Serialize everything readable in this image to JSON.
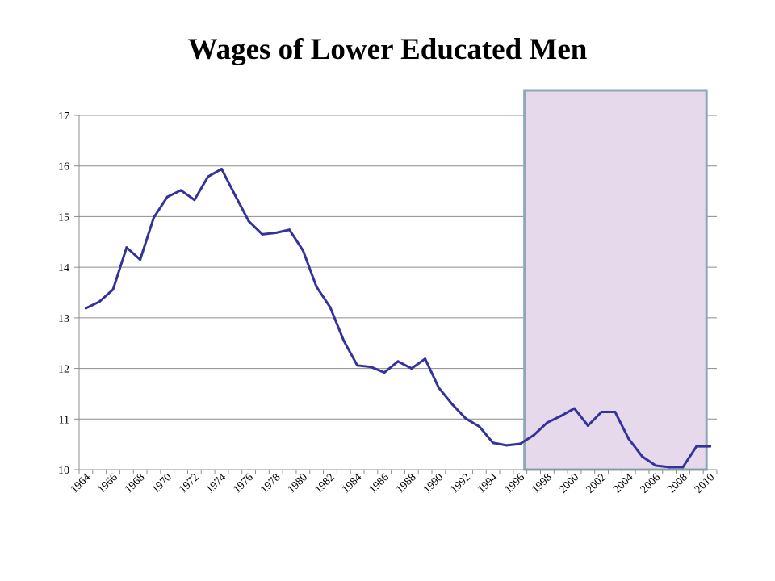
{
  "chart_data": {
    "type": "line",
    "title": "Wages of Lower Educated Men",
    "xlabel": "",
    "ylabel": "",
    "ylim": [
      10,
      17
    ],
    "y_ticks": [
      10,
      11,
      12,
      13,
      14,
      15,
      16,
      17
    ],
    "x_tick_labels": [
      "1964",
      "1966",
      "1968",
      "1970",
      "1972",
      "1974",
      "1976",
      "1978",
      "1980",
      "1982",
      "1984",
      "1986",
      "1988",
      "1990",
      "1992",
      "1994",
      "1996",
      "1998",
      "2000",
      "2002",
      "2004",
      "2006",
      "2008",
      "2010"
    ],
    "grid": true,
    "legend": "none",
    "highlight_range": [
      1997,
      2010
    ],
    "colors": {
      "line": "#333399",
      "highlight_fill": "#e6d9ec",
      "highlight_border": "#8fa6b3",
      "grid": "#8c8c8c"
    },
    "series": [
      {
        "x": [
          1964,
          1965,
          1966,
          1967,
          1968,
          1969,
          1970,
          1971,
          1972,
          1973,
          1974,
          1975,
          1976,
          1977,
          1978,
          1979,
          1980,
          1981,
          1982,
          1983,
          1984,
          1985,
          1986,
          1987,
          1988,
          1989,
          1990,
          1991,
          1992,
          1993,
          1994,
          1995,
          1996,
          1997,
          1998,
          1999,
          2000,
          2001,
          2002,
          2003,
          2004,
          2005,
          2006,
          2007,
          2008,
          2009,
          2010
        ],
        "values": [
          13.19,
          13.32,
          13.56,
          14.39,
          14.15,
          14.98,
          15.39,
          15.52,
          15.33,
          15.79,
          15.94,
          15.42,
          14.91,
          14.65,
          14.68,
          14.74,
          14.33,
          13.61,
          13.21,
          12.55,
          12.06,
          12.03,
          11.92,
          12.14,
          12.0,
          12.19,
          11.62,
          11.29,
          11.01,
          10.85,
          10.53,
          10.48,
          10.51,
          10.68,
          10.93,
          11.06,
          11.21,
          10.87,
          11.14,
          11.14,
          10.61,
          10.26,
          10.08,
          10.05,
          10.05,
          10.46,
          10.46
        ]
      }
    ]
  }
}
